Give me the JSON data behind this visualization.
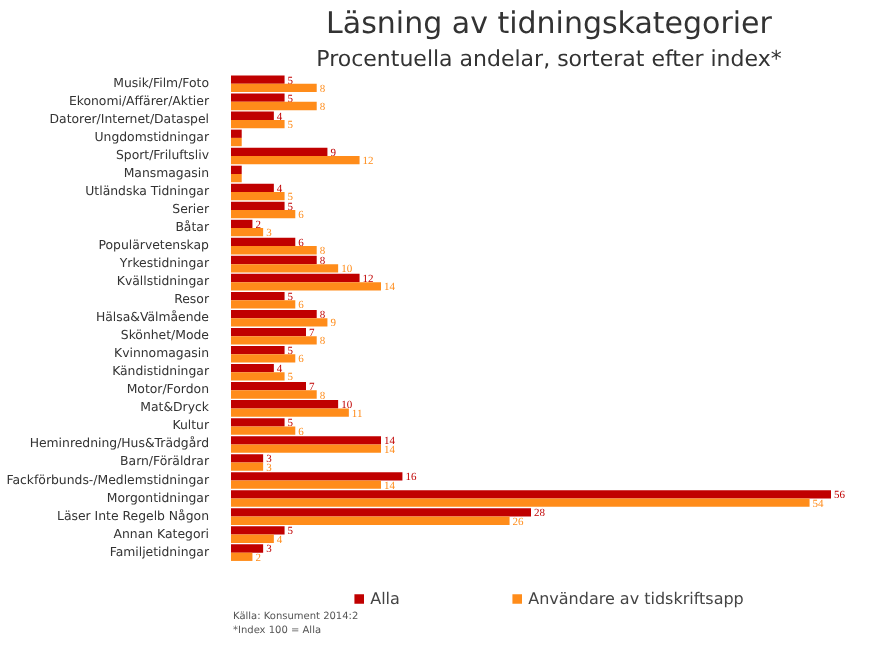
{
  "chart_data": {
    "type": "bar",
    "orientation": "horizontal",
    "title": "Läsning av tidningskategorier",
    "subtitle": "Procentuella andelar, sorterat efter index*",
    "categories": [
      "Musik/Film/Foto",
      "Ekonomi/Affärer/Aktier",
      "Datorer/Internet/Dataspel",
      "Ungdomstidningar",
      "Sport/Friluftsliv",
      "Mansmagasin",
      "Utländska Tidningar",
      "Serier",
      "Båtar",
      "Populärvetenskap",
      "Yrkestidningar",
      "Kvällstidningar",
      "Resor",
      "Hälsa&Välmående",
      "Skönhet/Mode",
      "Kvinnomagasin",
      "Kändistidningar",
      "Motor/Fordon",
      "Mat&Dryck",
      "Kultur",
      "Heminredning/Hus&Trädgård",
      "Barn/Föräldrar",
      "Fackförbunds-/Medlemstidningar",
      "Morgontidningar",
      "Läser Inte Regelb Någon",
      "Annan Kategori",
      "Familjetidningar"
    ],
    "series": [
      {
        "name": "Alla",
        "color": "#c00000",
        "values": [
          5,
          5,
          4,
          1,
          9,
          1,
          4,
          5,
          2,
          6,
          8,
          12,
          5,
          8,
          7,
          5,
          4,
          7,
          10,
          5,
          14,
          3,
          16,
          56,
          28,
          5,
          3
        ],
        "value_labels": [
          "5",
          "5",
          "4",
          null,
          "9",
          null,
          "4",
          "5",
          "2",
          "6",
          "8",
          "12",
          "5",
          "8",
          "7",
          "5",
          "4",
          "7",
          "10",
          "5",
          "14",
          "3",
          "16",
          "56",
          "28",
          "5",
          "3"
        ]
      },
      {
        "name": "Användare av tidskriftsapp",
        "color": "#ff8c1a",
        "values": [
          8,
          8,
          5,
          1,
          12,
          1,
          5,
          6,
          3,
          8,
          10,
          14,
          6,
          9,
          8,
          6,
          5,
          8,
          11,
          6,
          14,
          3,
          14,
          54,
          26,
          4,
          2
        ],
        "value_labels": [
          "8",
          "8",
          "5",
          null,
          "12",
          null,
          "5",
          "6",
          "3",
          "8",
          "10",
          "14",
          "6",
          "9",
          "8",
          "6",
          "5",
          "8",
          "11",
          "6",
          "14",
          "3",
          "14",
          "54",
          "26",
          "4",
          "2"
        ]
      }
    ],
    "legend": "bottom",
    "grid": false,
    "annotations": [
      "Källa: Konsument 2014:2",
      "*Index 100 = Alla"
    ]
  }
}
